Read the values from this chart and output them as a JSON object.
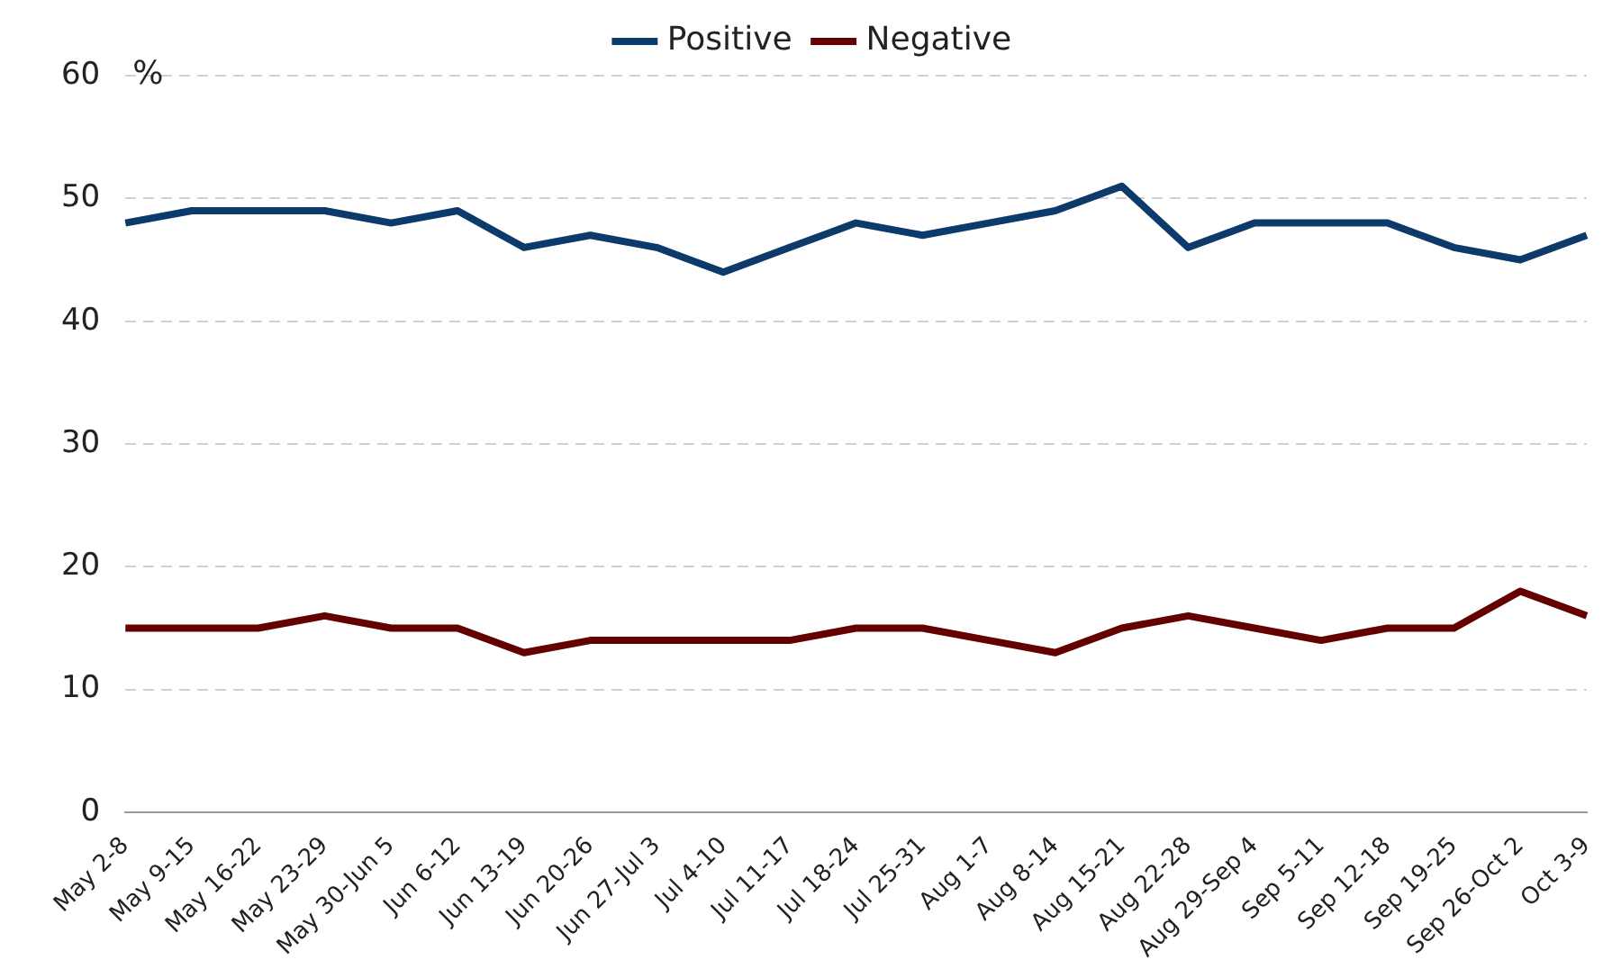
{
  "chart_data": {
    "type": "line",
    "ylabel": "%",
    "categories": [
      "May 2-8",
      "May 9-15",
      "May 16-22",
      "May 23-29",
      "May 30-Jun 5",
      "Jun 6-12",
      "Jun 13-19",
      "Jun 20-26",
      "Jun 27-Jul 3",
      "Jul 4-10",
      "Jul 11-17",
      "Jul 18-24",
      "Jul 25-31",
      "Aug 1-7",
      "Aug 8-14",
      "Aug 15-21",
      "Aug 22-28",
      "Aug 29-Sep 4",
      "Sep 5-11",
      "Sep 12-18",
      "Sep 19-25",
      "Sep 26-Oct 2",
      "Oct 3-9"
    ],
    "series": [
      {
        "name": "Positive",
        "color": "#0b3a6b",
        "values": [
          48,
          49,
          49,
          49,
          48,
          49,
          46,
          47,
          46,
          44,
          46,
          48,
          47,
          48,
          49,
          51,
          46,
          48,
          48,
          48,
          46,
          45,
          47
        ]
      },
      {
        "name": "Negative",
        "color": "#640000",
        "values": [
          15,
          15,
          15,
          16,
          15,
          15,
          13,
          14,
          14,
          14,
          14,
          15,
          15,
          14,
          13,
          15,
          16,
          15,
          14,
          15,
          15,
          18,
          16
        ]
      }
    ],
    "ylim": [
      0,
      60
    ],
    "yticks": [
      0,
      10,
      20,
      30,
      40,
      50,
      60
    ],
    "grid": "y",
    "legend": "top",
    "marker": "none",
    "line_style": "solid"
  }
}
